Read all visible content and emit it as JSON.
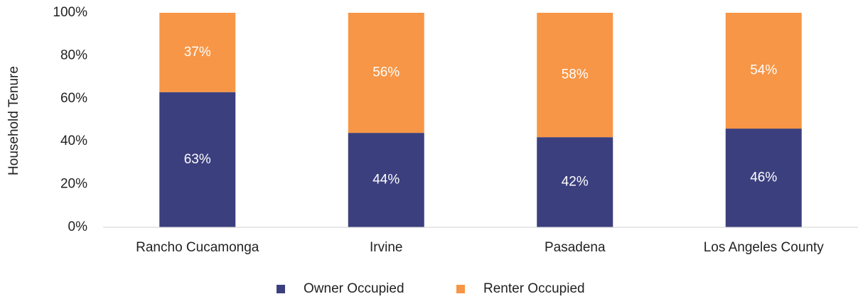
{
  "chart_data": {
    "type": "stacked_bar",
    "y_label": "Household Tenure",
    "categories": [
      "Rancho Cucamonga",
      "Irvine",
      "Pasadena",
      "Los Angeles County"
    ],
    "series": [
      {
        "name": "Owner Occupied",
        "color": "#3b3f7e",
        "values": [
          63,
          44,
          42,
          46
        ],
        "value_labels": [
          "63%",
          "44%",
          "42%",
          "46%"
        ]
      },
      {
        "name": "Renter Occupied",
        "color": "#f79646",
        "values": [
          37,
          56,
          58,
          54
        ],
        "value_labels": [
          "37%",
          "56%",
          "58%",
          "54%"
        ]
      }
    ],
    "ylim": [
      0,
      100
    ],
    "yticks": [
      {
        "value": 0,
        "label": "0%"
      },
      {
        "value": 20,
        "label": "20%"
      },
      {
        "value": 40,
        "label": "40%"
      },
      {
        "value": 60,
        "label": "60%"
      },
      {
        "value": 80,
        "label": "80%"
      },
      {
        "value": 100,
        "label": "100%"
      }
    ],
    "legend": "bottom"
  }
}
